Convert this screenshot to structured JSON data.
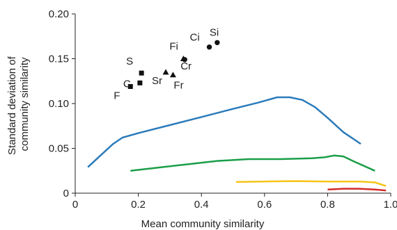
{
  "chart_data": {
    "type": "scatter",
    "title": "",
    "xlabel": "Mean community similarity",
    "ylabel": "Standard deviation of community similarity",
    "ylabel_lines": [
      "Standard deviation of",
      "community similarity"
    ],
    "xlim": [
      0,
      1.0
    ],
    "ylim": [
      0,
      0.2
    ],
    "xticks": [
      0,
      0.2,
      0.4,
      0.6,
      0.8,
      1.0
    ],
    "xtick_labels": [
      "0",
      "0.2",
      "0.4",
      "0.6",
      "0.8",
      "1.0"
    ],
    "yticks": [
      0,
      0.05,
      0.1,
      0.15,
      0.2
    ],
    "ytick_labels": [
      "0",
      "0.05",
      "0.10",
      "0.15",
      "0.20"
    ],
    "grid": false,
    "points": [
      {
        "label": "F",
        "marker": "square",
        "x": 0.175,
        "y": 0.119
      },
      {
        "label": "C",
        "marker": "square",
        "x": 0.205,
        "y": 0.123
      },
      {
        "label": "S",
        "marker": "square",
        "x": 0.21,
        "y": 0.134
      },
      {
        "label": "Sr",
        "marker": "triangle",
        "x": 0.287,
        "y": 0.135
      },
      {
        "label": "Fr",
        "marker": "triangle",
        "x": 0.31,
        "y": 0.132
      },
      {
        "label": "Fi",
        "marker": "triangle",
        "x": 0.343,
        "y": 0.15
      },
      {
        "label": "Cr",
        "marker": "circle",
        "x": 0.347,
        "y": 0.149
      },
      {
        "label": "Ci",
        "marker": "circle",
        "x": 0.425,
        "y": 0.163
      },
      {
        "label": "Si",
        "marker": "circle",
        "x": 0.45,
        "y": 0.168
      }
    ],
    "series": [
      {
        "color": "#2b7bba",
        "x": [
          0.04,
          0.08,
          0.12,
          0.15,
          0.2,
          0.3,
          0.4,
          0.5,
          0.58,
          0.64,
          0.68,
          0.72,
          0.76,
          0.8,
          0.85,
          0.905
        ],
        "y": [
          0.029,
          0.042,
          0.055,
          0.062,
          0.067,
          0.076,
          0.085,
          0.094,
          0.101,
          0.107,
          0.107,
          0.104,
          0.096,
          0.084,
          0.068,
          0.055
        ]
      },
      {
        "color": "#1a9e48",
        "x": [
          0.175,
          0.25,
          0.35,
          0.45,
          0.55,
          0.65,
          0.75,
          0.79,
          0.82,
          0.85,
          0.88,
          0.95
        ],
        "y": [
          0.025,
          0.028,
          0.032,
          0.036,
          0.038,
          0.038,
          0.039,
          0.04,
          0.042,
          0.041,
          0.036,
          0.025
        ]
      },
      {
        "color": "#f5c518",
        "x": [
          0.51,
          0.6,
          0.7,
          0.8,
          0.9,
          0.95,
          0.985
        ],
        "y": [
          0.0125,
          0.013,
          0.0135,
          0.013,
          0.013,
          0.012,
          0.008
        ]
      },
      {
        "color": "#d42b27",
        "x": [
          0.8,
          0.85,
          0.9,
          0.95,
          0.985
        ],
        "y": [
          0.004,
          0.005,
          0.005,
          0.004,
          0.003
        ]
      }
    ],
    "marker_color": "#111111",
    "axis_color": "#222222"
  }
}
